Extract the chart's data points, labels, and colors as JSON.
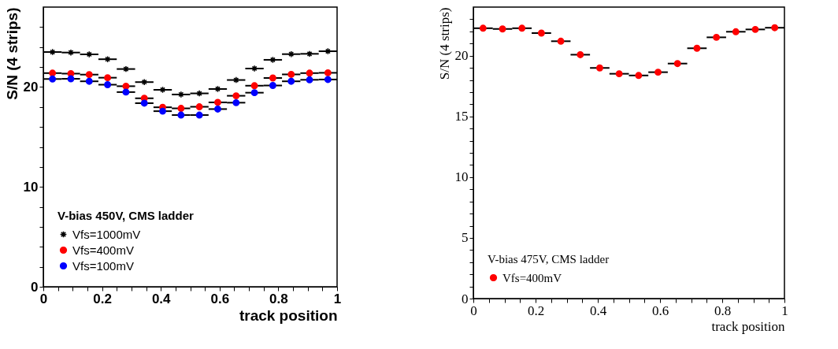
{
  "chart_data": [
    {
      "type": "scatter",
      "xlabel": "track position",
      "ylabel": "S/N (4 strips)",
      "legend_title": "V-bias 450V, CMS ladder",
      "legend": "bottom left",
      "x": [
        0.03125,
        0.09375,
        0.15625,
        0.21875,
        0.28125,
        0.34375,
        0.40625,
        0.46875,
        0.53125,
        0.59375,
        0.65625,
        0.71875,
        0.78125,
        0.84375,
        0.90625,
        0.96875
      ],
      "xlim": [
        0,
        1
      ],
      "ylim": [
        0,
        28
      ],
      "xticks": [
        0,
        {
          "value": 0.05,
          "label": null
        },
        {
          "value": 0.1,
          "label": null
        },
        {
          "value": 0.15,
          "label": null
        },
        0.2,
        {
          "value": 0.25,
          "label": null
        },
        {
          "value": 0.3,
          "label": null
        },
        {
          "value": 0.35,
          "label": null
        },
        0.4,
        {
          "value": 0.45,
          "label": null
        },
        {
          "value": 0.5,
          "label": null
        },
        {
          "value": 0.55,
          "label": null
        },
        0.6,
        {
          "value": 0.65,
          "label": null
        },
        {
          "value": 0.7,
          "label": null
        },
        {
          "value": 0.75,
          "label": null
        },
        0.8,
        {
          "value": 0.85,
          "label": null
        },
        {
          "value": 0.9,
          "label": null
        },
        {
          "value": 0.95,
          "label": null
        },
        1
      ],
      "yticks": [
        0,
        {
          "value": 2,
          "label": null
        },
        {
          "value": 4,
          "label": null
        },
        {
          "value": 6,
          "label": null
        },
        {
          "value": 8,
          "label": null
        },
        10,
        {
          "value": 12,
          "label": null
        },
        {
          "value": 14,
          "label": null
        },
        {
          "value": 16,
          "label": null
        },
        {
          "value": 18,
          "label": null
        },
        20,
        {
          "value": 22,
          "label": null
        },
        {
          "value": 24,
          "label": null
        },
        {
          "value": 26,
          "label": null
        }
      ],
      "grid": false,
      "series": [
        {
          "name": "Vfs=1000mV",
          "color": "#000000",
          "marker": "cross",
          "values": [
            23.5,
            23.45,
            23.27,
            22.78,
            21.8,
            20.49,
            19.72,
            19.25,
            19.36,
            19.8,
            20.7,
            21.85,
            22.72,
            23.29,
            23.32,
            23.58
          ],
          "xerrors": [
            0.03125,
            0.03125,
            0.03125,
            0.03125,
            0.03125,
            0.03125,
            0.03125,
            0.03125,
            0.03125,
            0.03125,
            0.03125,
            0.03125,
            0.03125,
            0.03125,
            0.03125,
            0.03125
          ]
        },
        {
          "name": "Vfs=400mV",
          "color": "#ff0000",
          "marker": "circle",
          "values": [
            21.39,
            21.34,
            21.24,
            20.93,
            20.08,
            18.87,
            17.97,
            17.86,
            18.02,
            18.46,
            19.12,
            20.13,
            20.9,
            21.26,
            21.39,
            21.42
          ],
          "xerrors": [
            0.03125,
            0.03125,
            0.03125,
            0.03125,
            0.03125,
            0.03125,
            0.03125,
            0.03125,
            0.03125,
            0.03125,
            0.03125,
            0.03125,
            0.03125,
            0.03125,
            0.03125,
            0.03125
          ]
        },
        {
          "name": "Vfs=100mV",
          "color": "#0000ff",
          "marker": "circle",
          "values": [
            20.8,
            20.82,
            20.57,
            20.23,
            19.49,
            18.38,
            17.58,
            17.19,
            17.19,
            17.79,
            18.43,
            19.43,
            20.15,
            20.57,
            20.72,
            20.75
          ],
          "xerrors": [
            0.03125,
            0.03125,
            0.03125,
            0.03125,
            0.03125,
            0.03125,
            0.03125,
            0.03125,
            0.03125,
            0.03125,
            0.03125,
            0.03125,
            0.03125,
            0.03125,
            0.03125,
            0.03125
          ]
        }
      ]
    },
    {
      "type": "scatter",
      "xlabel": "track position",
      "ylabel": "S/N (4 strips)",
      "legend_title": "V-bias 475V, CMS ladder",
      "legend": "bottom left",
      "x": [
        0.03125,
        0.09375,
        0.15625,
        0.21875,
        0.28125,
        0.34375,
        0.40625,
        0.46875,
        0.53125,
        0.59375,
        0.65625,
        0.71875,
        0.78125,
        0.84375,
        0.90625,
        0.96875
      ],
      "xlim": [
        0,
        1
      ],
      "ylim": [
        0,
        24
      ],
      "xticks": [
        0,
        {
          "value": 0.05,
          "label": null
        },
        {
          "value": 0.1,
          "label": null
        },
        {
          "value": 0.15,
          "label": null
        },
        0.2,
        {
          "value": 0.25,
          "label": null
        },
        {
          "value": 0.3,
          "label": null
        },
        {
          "value": 0.35,
          "label": null
        },
        0.4,
        {
          "value": 0.45,
          "label": null
        },
        {
          "value": 0.5,
          "label": null
        },
        {
          "value": 0.55,
          "label": null
        },
        0.6,
        {
          "value": 0.65,
          "label": null
        },
        {
          "value": 0.7,
          "label": null
        },
        {
          "value": 0.75,
          "label": null
        },
        0.8,
        {
          "value": 0.85,
          "label": null
        },
        {
          "value": 0.9,
          "label": null
        },
        {
          "value": 0.95,
          "label": null
        },
        1
      ],
      "yticks": [
        0,
        {
          "value": 1,
          "label": null
        },
        {
          "value": 2,
          "label": null
        },
        {
          "value": 3,
          "label": null
        },
        {
          "value": 4,
          "label": null
        },
        5,
        {
          "value": 6,
          "label": null
        },
        {
          "value": 7,
          "label": null
        },
        {
          "value": 8,
          "label": null
        },
        {
          "value": 9,
          "label": null
        },
        10,
        {
          "value": 11,
          "label": null
        },
        {
          "value": 12,
          "label": null
        },
        {
          "value": 13,
          "label": null
        },
        {
          "value": 14,
          "label": null
        },
        15,
        {
          "value": 16,
          "label": null
        },
        {
          "value": 17,
          "label": null
        },
        {
          "value": 18,
          "label": null
        },
        {
          "value": 19,
          "label": null
        },
        20,
        {
          "value": 21,
          "label": null
        },
        {
          "value": 22,
          "label": null
        },
        {
          "value": 23,
          "label": null
        }
      ],
      "grid": false,
      "series": [
        {
          "name": "Vfs=400mV",
          "color": "#ff0000",
          "marker": "circle",
          "values": [
            22.26,
            22.2,
            22.26,
            21.86,
            21.19,
            20.08,
            18.99,
            18.51,
            18.37,
            18.64,
            19.35,
            20.61,
            21.51,
            21.97,
            22.16,
            22.3
          ],
          "xerrors": [
            0.03125,
            0.03125,
            0.03125,
            0.03125,
            0.03125,
            0.03125,
            0.03125,
            0.03125,
            0.03125,
            0.03125,
            0.03125,
            0.03125,
            0.03125,
            0.03125,
            0.03125,
            0.03125
          ]
        }
      ]
    }
  ]
}
